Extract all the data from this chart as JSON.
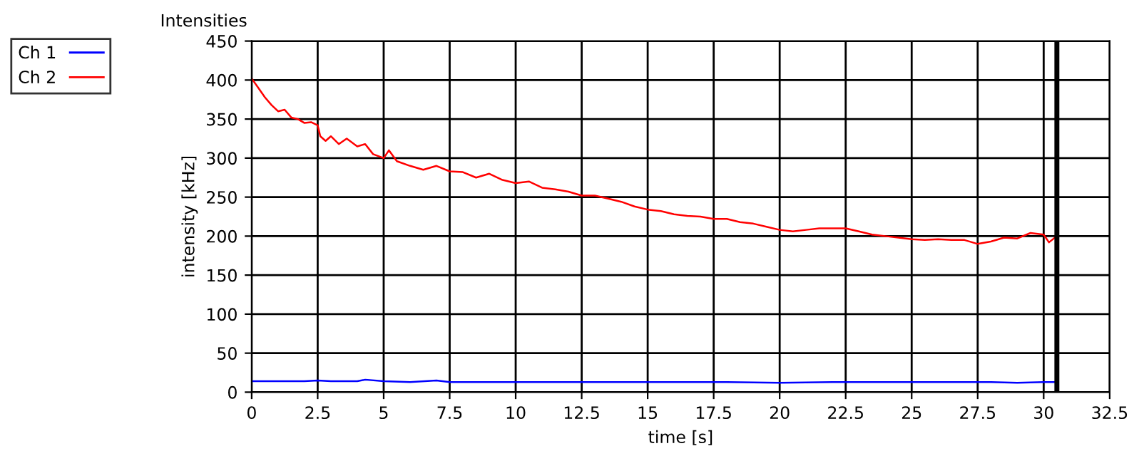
{
  "chart_data": {
    "type": "line",
    "title": "Intensities",
    "xlabel": "time [s]",
    "ylabel": "intensity [kHz]",
    "xlim": [
      0,
      32.5
    ],
    "xticks": [
      0,
      2.5,
      5,
      7.5,
      10,
      12.5,
      15,
      17.5,
      20,
      22.5,
      25,
      27.5,
      30,
      32.5
    ],
    "ylim": [
      0,
      450
    ],
    "yticks": [
      0,
      50,
      100,
      150,
      200,
      250,
      300,
      350,
      400,
      450
    ],
    "grid": true,
    "legend": "top left",
    "ref_lines": [
      {
        "axis": "x",
        "value": 30.5,
        "color": "#000000"
      }
    ],
    "series": [
      {
        "name": "Ch 1",
        "color": "#0000ff",
        "x": [
          0,
          1,
          2,
          2.5,
          3,
          4,
          4.3,
          5,
          6,
          7,
          7.5,
          8,
          9,
          10,
          12,
          14,
          16,
          18,
          20,
          22,
          24,
          26,
          28,
          29,
          30,
          30.5
        ],
        "values": [
          14,
          14,
          14,
          15,
          14,
          14,
          16,
          14,
          13,
          15,
          13,
          13,
          13,
          13,
          13,
          13,
          13,
          13,
          12,
          13,
          13,
          13,
          13,
          12,
          13,
          13
        ]
      },
      {
        "name": "Ch 2",
        "color": "#ff0000",
        "x": [
          0,
          0.25,
          0.5,
          0.75,
          1,
          1.25,
          1.5,
          1.75,
          2,
          2.25,
          2.5,
          2.6,
          2.8,
          3,
          3.3,
          3.6,
          4,
          4.3,
          4.6,
          5,
          5.2,
          5.5,
          6,
          6.5,
          7,
          7.5,
          8,
          8.5,
          9,
          9.5,
          10,
          10.5,
          11,
          11.5,
          12,
          12.5,
          13,
          13.5,
          14,
          14.5,
          15,
          15.5,
          16,
          16.5,
          17,
          17.5,
          18,
          18.5,
          19,
          19.5,
          20,
          20.5,
          21,
          21.5,
          22,
          22.5,
          23,
          23.5,
          24,
          24.5,
          25,
          25.5,
          26,
          26.5,
          27,
          27.5,
          28,
          28.5,
          29,
          29.5,
          30,
          30.2,
          30.5
        ],
        "values": [
          402,
          390,
          378,
          368,
          360,
          362,
          352,
          350,
          345,
          346,
          342,
          328,
          322,
          328,
          318,
          325,
          315,
          318,
          305,
          300,
          310,
          296,
          290,
          285,
          290,
          283,
          282,
          275,
          280,
          272,
          268,
          270,
          262,
          260,
          257,
          252,
          252,
          248,
          244,
          238,
          234,
          232,
          228,
          226,
          225,
          222,
          222,
          218,
          216,
          212,
          208,
          206,
          208,
          210,
          210,
          210,
          206,
          202,
          200,
          198,
          196,
          195,
          196,
          195,
          195,
          190,
          193,
          198,
          197,
          204,
          202,
          192,
          200
        ]
      }
    ]
  }
}
